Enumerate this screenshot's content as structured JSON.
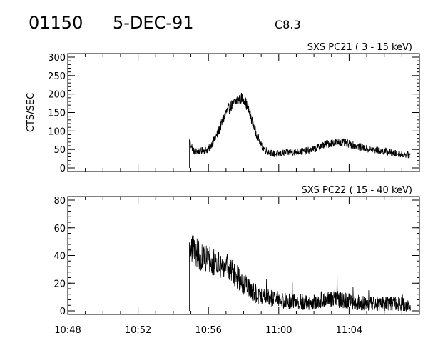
{
  "header": {
    "event_id": "01150",
    "date": "5-DEC-91",
    "goes_class": "C8.3"
  },
  "chart_data": [
    {
      "type": "line",
      "title": "SXS PC21  (  3 - 15 keV)",
      "ylabel": "CTS/SEC",
      "xlabel": "",
      "xlim": [
        "10:48",
        "11:08"
      ],
      "ylim": [
        0,
        300
      ],
      "y_ticks": [
        "0",
        "50",
        "100",
        "150",
        "200",
        "250",
        "300"
      ],
      "x_ticks": [
        "10:48",
        "10:52",
        "10:56",
        "11:00",
        "11:04"
      ],
      "grid": false,
      "series": [
        {
          "x": [
            "10:54:55",
            "10:55:10",
            "10:55:30",
            "10:56:00",
            "10:56:30",
            "10:57:00",
            "10:57:20",
            "10:57:40",
            "10:58:00",
            "10:58:20",
            "10:58:40",
            "10:59:00",
            "10:59:20",
            "10:59:40",
            "11:00:00",
            "11:00:30",
            "11:01:00",
            "11:01:30",
            "11:02:00",
            "11:02:30",
            "11:03:00",
            "11:03:30",
            "11:04:00",
            "11:04:30",
            "11:05:00",
            "11:05:30",
            "11:06:00",
            "11:06:30",
            "11:07:00",
            "11:07:30"
          ],
          "values": [
            72,
            45,
            45,
            50,
            90,
            150,
            170,
            185,
            190,
            150,
            100,
            60,
            45,
            38,
            38,
            42,
            44,
            45,
            50,
            62,
            68,
            70,
            65,
            58,
            52,
            48,
            45,
            40,
            37,
            35
          ]
        }
      ]
    },
    {
      "type": "line",
      "title": "SXS PC22  ( 15 - 40 keV)",
      "ylabel": "",
      "xlabel": "",
      "xlim": [
        "10:48",
        "11:08"
      ],
      "ylim": [
        0,
        80
      ],
      "y_ticks": [
        "0",
        "20",
        "40",
        "60",
        "80"
      ],
      "x_ticks": [
        "10:48",
        "10:52",
        "10:56",
        "11:00",
        "11:04"
      ],
      "grid": false,
      "series": [
        {
          "x": [
            "10:54:55",
            "10:55:05",
            "10:55:30",
            "10:56:00",
            "10:56:30",
            "10:57:00",
            "10:57:30",
            "10:58:00",
            "10:58:30",
            "10:59:00",
            "10:59:30",
            "11:00:00",
            "11:00:30",
            "11:01:00",
            "11:01:30",
            "11:02:00",
            "11:02:30",
            "11:03:00",
            "11:03:30",
            "11:04:00",
            "11:04:30",
            "11:05:00",
            "11:05:30",
            "11:06:00",
            "11:06:30",
            "11:07:00",
            "11:07:30"
          ],
          "values": [
            44,
            45,
            40,
            38,
            34,
            32,
            26,
            20,
            14,
            10,
            9,
            8,
            7,
            7,
            6,
            6,
            8,
            9,
            8,
            7,
            6,
            6,
            5,
            5,
            5,
            5,
            4
          ]
        }
      ]
    }
  ]
}
